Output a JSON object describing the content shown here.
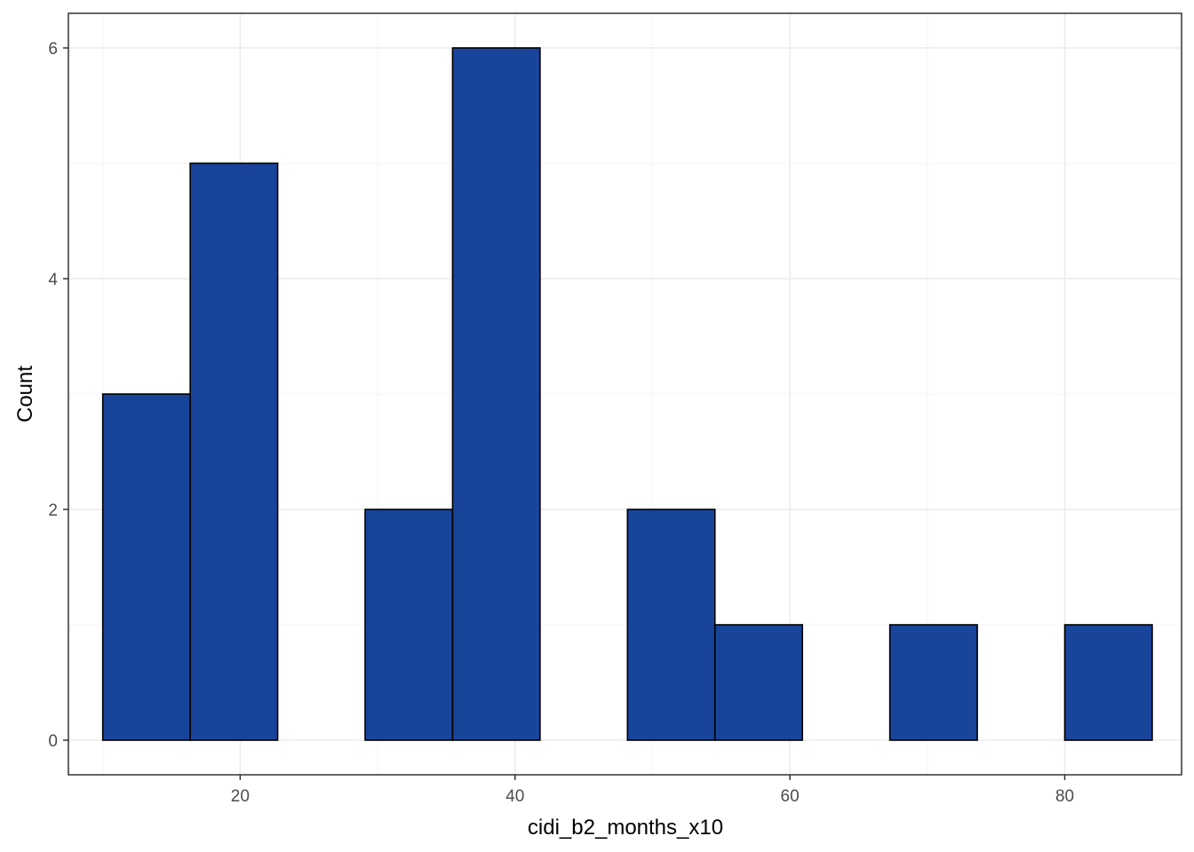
{
  "chart_data": {
    "type": "bar",
    "title": "",
    "xlabel": "cidi_b2_months_x10",
    "ylabel": "Count",
    "xlim": [
      7.5,
      88.5
    ],
    "ylim": [
      -0.3,
      6.3
    ],
    "x_ticks": [
      20,
      40,
      60,
      80
    ],
    "y_ticks": [
      0,
      2,
      4,
      6
    ],
    "grid": true,
    "bin_width": 6.3636,
    "bins": [
      {
        "x0": 10.0,
        "x1": 16.364,
        "count": 3
      },
      {
        "x0": 16.364,
        "x1": 22.727,
        "count": 5
      },
      {
        "x0": 22.727,
        "x1": 29.091,
        "count": 0
      },
      {
        "x0": 29.091,
        "x1": 35.455,
        "count": 2
      },
      {
        "x0": 35.455,
        "x1": 41.818,
        "count": 6
      },
      {
        "x0": 41.818,
        "x1": 48.182,
        "count": 0
      },
      {
        "x0": 48.182,
        "x1": 54.545,
        "count": 2
      },
      {
        "x0": 54.545,
        "x1": 60.909,
        "count": 1
      },
      {
        "x0": 60.909,
        "x1": 67.273,
        "count": 0
      },
      {
        "x0": 67.273,
        "x1": 73.636,
        "count": 1
      },
      {
        "x0": 73.636,
        "x1": 80.0,
        "count": 0
      },
      {
        "x0": 80.0,
        "x1": 86.364,
        "count": 1
      }
    ],
    "colors": {
      "fill": "#18449A",
      "outline": "#000000",
      "grid_major": "#EBEBEB",
      "grid_minor": "#F5F5F5",
      "panel_border": "#333333"
    }
  }
}
